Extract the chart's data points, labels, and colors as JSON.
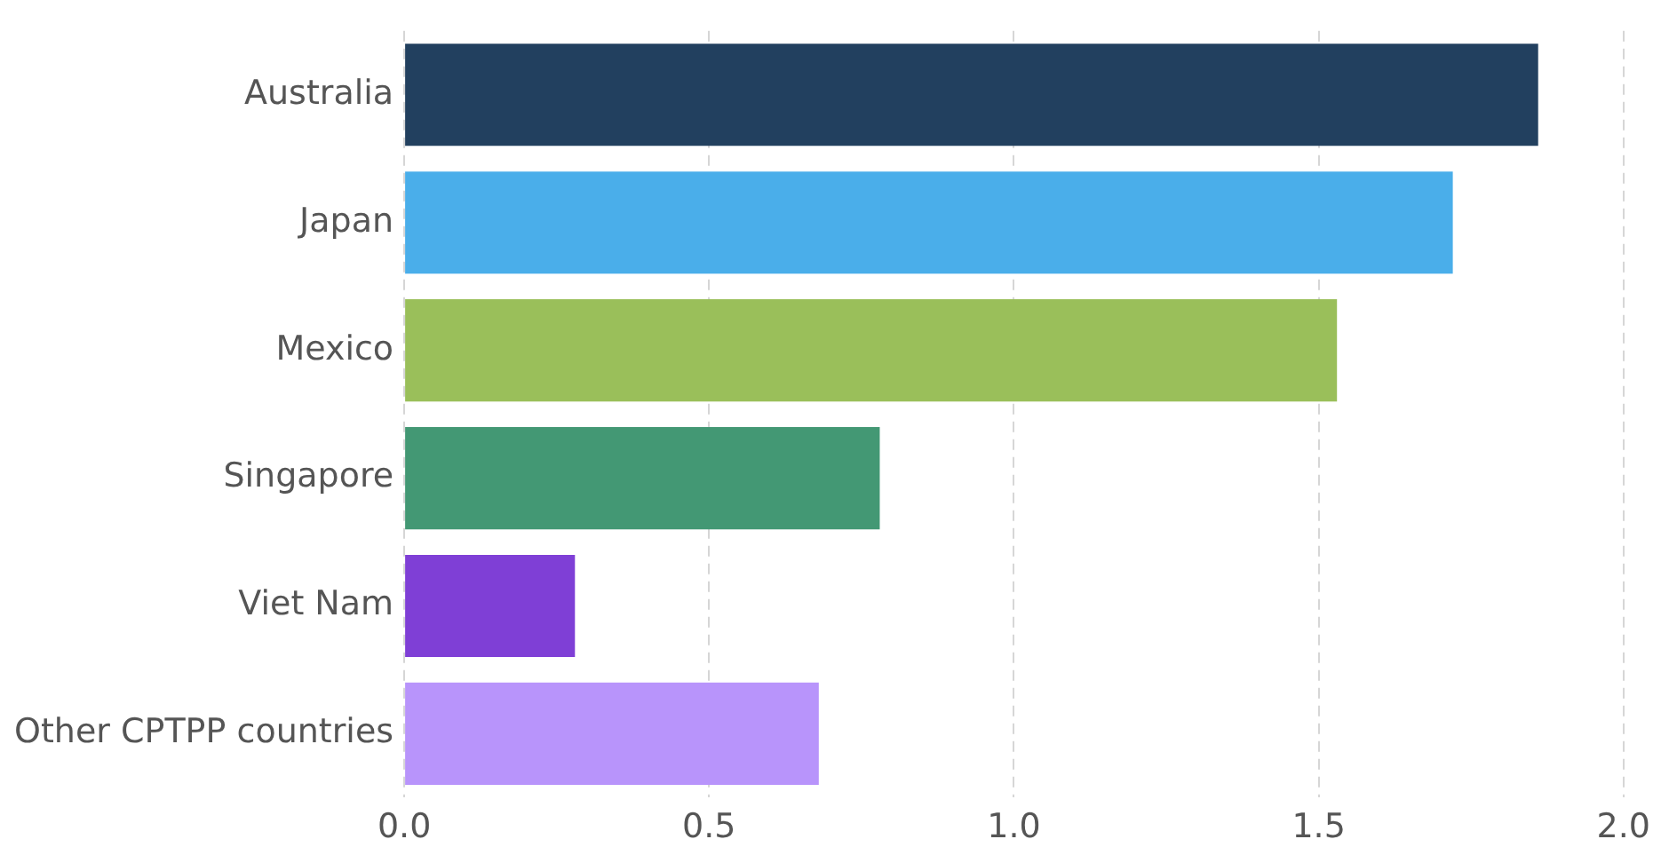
{
  "chart_data": {
    "type": "bar",
    "orientation": "horizontal",
    "categories": [
      "Australia",
      "Japan",
      "Mexico",
      "Singapore",
      "Viet Nam",
      "Other CPTPP countries"
    ],
    "values": [
      1.86,
      1.72,
      1.53,
      0.78,
      0.28,
      0.68
    ],
    "colors": [
      "#22405f",
      "#4aaeea",
      "#9abf5a",
      "#439874",
      "#7f3fd6",
      "#b894fb"
    ],
    "xlim": [
      0,
      2
    ],
    "xticks": [
      {
        "value": 0,
        "label": "0.0"
      },
      {
        "value": 0.5,
        "label": "0.5"
      },
      {
        "value": 1,
        "label": "1.0"
      },
      {
        "value": 1.5,
        "label": "1.5"
      },
      {
        "value": 2,
        "label": "2.0"
      }
    ],
    "grid": "x",
    "legend": false
  }
}
